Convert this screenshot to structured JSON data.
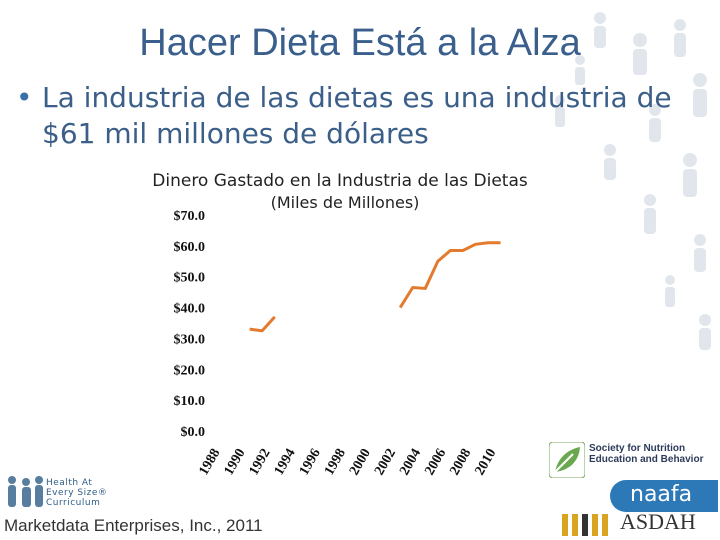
{
  "slide": {
    "title": "Hacer Dieta Está a la Alza",
    "bullet": "La industria de las dietas es una industria de $61 mil millones de dólares",
    "source": "Marketdata Enterprises, Inc., 2011"
  },
  "logos": {
    "haes_lines": [
      "Health At",
      "Every Size®",
      "Curriculum"
    ],
    "sne_text": "Society for Nutrition Education and Behavior",
    "naafa_text": "naafa",
    "asdah_text": "ASDAH"
  },
  "colors": {
    "title": "#3a5f8c",
    "bullet": "#3b5f88",
    "line": "#e47a2e",
    "naafa": "#2d79b8",
    "sne_green": "#6aa84f",
    "asdah_gold": "#d9a520",
    "bg_figures": "#c9d3e0"
  },
  "chart_data": {
    "type": "line",
    "title": "Dinero Gastado en la Industria de las Dietas",
    "subtitle": "(Miles de Millones)",
    "ylim": [
      0,
      70
    ],
    "y_ticks": [
      "$0.0",
      "$10.0",
      "$20.0",
      "$30.0",
      "$40.0",
      "$50.0",
      "$60.0",
      "$70.0"
    ],
    "x_ticks": [
      "1988",
      "1990",
      "1992",
      "1994",
      "1996",
      "1998",
      "2000",
      "2002",
      "2004",
      "2006",
      "2008",
      "2010"
    ],
    "xlim": [
      1988,
      2010
    ],
    "grid": false,
    "series": [
      {
        "segments": [
          {
            "x": [
              1991,
              1992,
              1993
            ],
            "y": [
              33,
              32.5,
              37
            ]
          },
          {
            "x": [
              2003,
              2004,
              2005,
              2006,
              2007,
              2008,
              2009,
              2010,
              2011
            ],
            "y": [
              40,
              46.5,
              46.2,
              55,
              58.5,
              58.5,
              60.5,
              61,
              61
            ]
          }
        ]
      }
    ]
  }
}
